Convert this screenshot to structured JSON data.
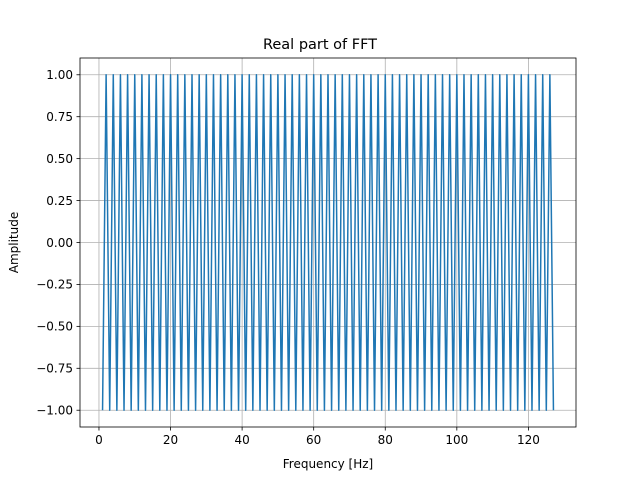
{
  "chart_data": {
    "type": "line",
    "title": "Real part of FFT",
    "xlabel": "Frequency [Hz]",
    "ylabel": "Amplitude",
    "xlim": [
      -5.3,
      133.3
    ],
    "ylim": [
      -1.1,
      1.1
    ],
    "xticks": [
      0,
      20,
      40,
      60,
      80,
      100,
      120
    ],
    "xtick_labels": [
      "0",
      "20",
      "40",
      "60",
      "80",
      "100",
      "120"
    ],
    "yticks": [
      -1.0,
      -0.75,
      -0.5,
      -0.25,
      0.0,
      0.25,
      0.5,
      0.75,
      1.0
    ],
    "ytick_labels": [
      "−1.00",
      "−0.75",
      "−0.50",
      "−0.25",
      "0.00",
      "0.25",
      "0.50",
      "0.75",
      "1.00"
    ],
    "grid": true,
    "series": [
      {
        "color": "#1f77b4",
        "x_start": 1,
        "x_end": 127,
        "x_step": 1,
        "values_pattern": "alternating -1 (odd x) and 1 (even x)"
      }
    ]
  }
}
